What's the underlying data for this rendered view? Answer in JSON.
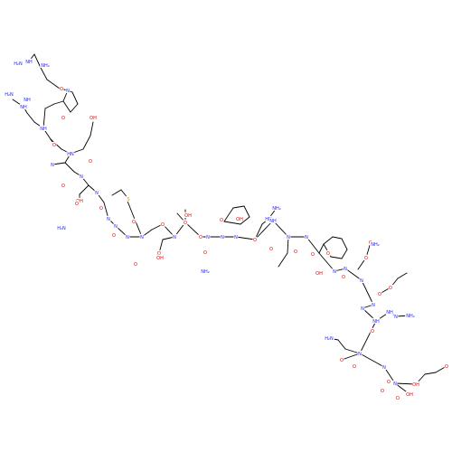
{
  "molecule": {
    "colors": {
      "carbon": "#000000",
      "oxygen": "#e00000",
      "nitrogen": "#2020ff",
      "sulfur": "#c8a000",
      "background": "#ffffff"
    },
    "atom_labels": [
      {
        "id": "a1",
        "text": "NH",
        "el": "N"
      },
      {
        "id": "a2",
        "text": "NH",
        "el": "N"
      },
      {
        "id": "a3",
        "text": "H₂N",
        "el": "N"
      },
      {
        "id": "a4",
        "text": "NH₂",
        "el": "N"
      },
      {
        "id": "a5",
        "text": "O",
        "el": "O"
      },
      {
        "id": "a6",
        "text": "N",
        "el": "N"
      },
      {
        "id": "a7",
        "text": "O",
        "el": "O"
      },
      {
        "id": "a8",
        "text": "NH",
        "el": "N"
      },
      {
        "id": "a9",
        "text": "NH",
        "el": "N"
      },
      {
        "id": "a10",
        "text": "H₂N",
        "el": "N"
      },
      {
        "id": "a11",
        "text": "O",
        "el": "O"
      },
      {
        "id": "a12",
        "text": "HN",
        "el": "N"
      },
      {
        "id": "a13",
        "text": "N",
        "el": "N"
      },
      {
        "id": "a14",
        "text": "O",
        "el": "O"
      },
      {
        "id": "a15",
        "text": "OH",
        "el": "O"
      },
      {
        "id": "a16",
        "text": "N",
        "el": "N"
      },
      {
        "id": "a17",
        "text": "O",
        "el": "O"
      },
      {
        "id": "a18",
        "text": "OH",
        "el": "O"
      },
      {
        "id": "a19",
        "text": "O",
        "el": "O"
      },
      {
        "id": "a20",
        "text": "N",
        "el": "N"
      },
      {
        "id": "a21",
        "text": "O",
        "el": "O"
      },
      {
        "id": "a22",
        "text": "N",
        "el": "N"
      },
      {
        "id": "a23",
        "text": "O",
        "el": "O"
      },
      {
        "id": "a24",
        "text": "N",
        "el": "N"
      },
      {
        "id": "a25",
        "text": "O",
        "el": "O"
      },
      {
        "id": "a26",
        "text": "H₂N",
        "el": "N"
      },
      {
        "id": "a27",
        "text": "N",
        "el": "N"
      },
      {
        "id": "a28",
        "text": "O",
        "el": "O"
      },
      {
        "id": "a29",
        "text": "N",
        "el": "N"
      },
      {
        "id": "a30",
        "text": "S",
        "el": "S"
      },
      {
        "id": "a31",
        "text": "O",
        "el": "O"
      },
      {
        "id": "a32",
        "text": "N",
        "el": "N"
      },
      {
        "id": "a33",
        "text": "O",
        "el": "O"
      },
      {
        "id": "a34",
        "text": "OH",
        "el": "O"
      },
      {
        "id": "a35",
        "text": "O",
        "el": "O"
      },
      {
        "id": "a36",
        "text": "OH",
        "el": "O"
      },
      {
        "id": "a37",
        "text": "O",
        "el": "O"
      },
      {
        "id": "a38",
        "text": "N",
        "el": "N"
      },
      {
        "id": "a39",
        "text": "O",
        "el": "O"
      },
      {
        "id": "a40",
        "text": "N",
        "el": "N"
      },
      {
        "id": "a41",
        "text": "OH",
        "el": "O"
      },
      {
        "id": "a42",
        "text": "O",
        "el": "O"
      },
      {
        "id": "a43",
        "text": "N",
        "el": "N"
      },
      {
        "id": "a44",
        "text": "NH₂",
        "el": "N"
      },
      {
        "id": "a45",
        "text": "O",
        "el": "O"
      },
      {
        "id": "a46",
        "text": "HN",
        "el": "N"
      },
      {
        "id": "a47",
        "text": "NH₂",
        "el": "N"
      },
      {
        "id": "a48",
        "text": "NH",
        "el": "N"
      },
      {
        "id": "a49",
        "text": "O",
        "el": "O"
      },
      {
        "id": "a50",
        "text": "N",
        "el": "N"
      },
      {
        "id": "a51",
        "text": "O",
        "el": "O"
      },
      {
        "id": "a52",
        "text": "N",
        "el": "N"
      },
      {
        "id": "a53",
        "text": "O",
        "el": "O"
      },
      {
        "id": "a54",
        "text": "OH",
        "el": "O"
      },
      {
        "id": "a55",
        "text": "O",
        "el": "O"
      },
      {
        "id": "a56",
        "text": "N",
        "el": "N"
      },
      {
        "id": "a57",
        "text": "O",
        "el": "O"
      },
      {
        "id": "a58",
        "text": "N",
        "el": "N"
      },
      {
        "id": "a59",
        "text": "O",
        "el": "O"
      },
      {
        "id": "a60",
        "text": "O",
        "el": "O"
      },
      {
        "id": "a61",
        "text": "NH₂",
        "el": "N"
      },
      {
        "id": "a62",
        "text": "N",
        "el": "N"
      },
      {
        "id": "a63",
        "text": "O",
        "el": "O"
      },
      {
        "id": "a64",
        "text": "N",
        "el": "N"
      },
      {
        "id": "a65",
        "text": "O",
        "el": "O"
      },
      {
        "id": "a66",
        "text": "N",
        "el": "N"
      },
      {
        "id": "a67",
        "text": "O",
        "el": "O"
      },
      {
        "id": "a68",
        "text": "N",
        "el": "N"
      },
      {
        "id": "a69",
        "text": "NH",
        "el": "N"
      },
      {
        "id": "a70",
        "text": "NH₂",
        "el": "N"
      },
      {
        "id": "a71",
        "text": "H₂N",
        "el": "N"
      },
      {
        "id": "a72",
        "text": "NH",
        "el": "N"
      },
      {
        "id": "a73",
        "text": "O",
        "el": "O"
      },
      {
        "id": "a74",
        "text": "N",
        "el": "N"
      },
      {
        "id": "a75",
        "text": "O",
        "el": "O"
      },
      {
        "id": "a76",
        "text": "N",
        "el": "N"
      },
      {
        "id": "a77",
        "text": "O",
        "el": "O"
      },
      {
        "id": "a78",
        "text": "N",
        "el": "N"
      },
      {
        "id": "a79",
        "text": "O",
        "el": "O"
      },
      {
        "id": "a80",
        "text": "OH",
        "el": "O"
      },
      {
        "id": "a81",
        "text": "O",
        "el": "O"
      },
      {
        "id": "a82",
        "text": "OH",
        "el": "O"
      },
      {
        "id": "a83",
        "text": "O",
        "el": "O"
      }
    ]
  }
}
